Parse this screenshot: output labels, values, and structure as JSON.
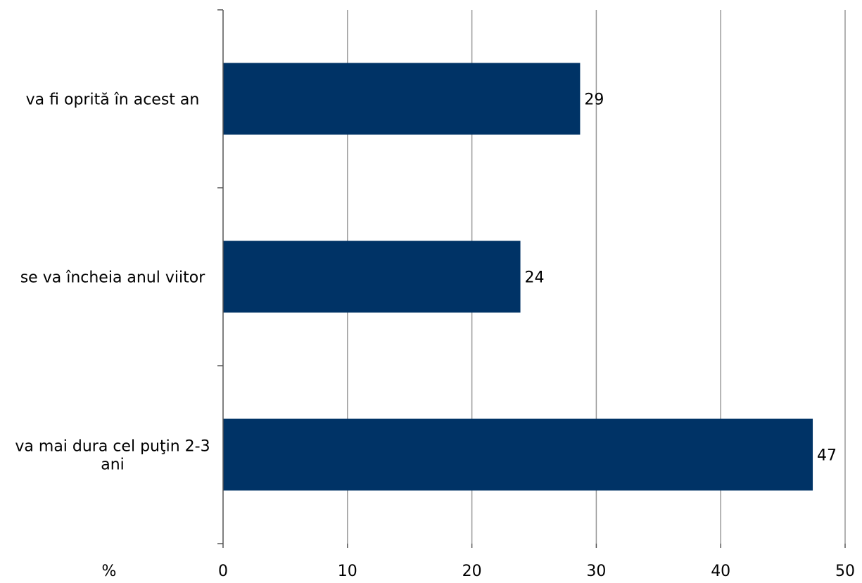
{
  "chart_data": {
    "type": "bar",
    "orientation": "horizontal",
    "categories": [
      [
        "va fi oprită în acest an"
      ],
      [
        "se va încheia anul viitor"
      ],
      [
        "va mai dura cel puţin 2-3",
        "ani"
      ]
    ],
    "values": [
      29,
      24,
      47
    ],
    "data_labels": [
      "29",
      "24",
      "47"
    ],
    "bar_values": [
      28.7,
      23.9,
      47.4
    ],
    "xlim": [
      0,
      50
    ],
    "xticks": [
      0,
      10,
      20,
      30,
      40,
      50
    ],
    "xtick_labels": [
      "0",
      "10",
      "20",
      "30",
      "40",
      "50"
    ],
    "x_unit_label": "%",
    "grid": "vertical",
    "legend": "none",
    "title": "",
    "xlabel": "",
    "ylabel": ""
  },
  "colors": {
    "bar": "#003366",
    "grid": "#999999",
    "axis": "#555555"
  }
}
